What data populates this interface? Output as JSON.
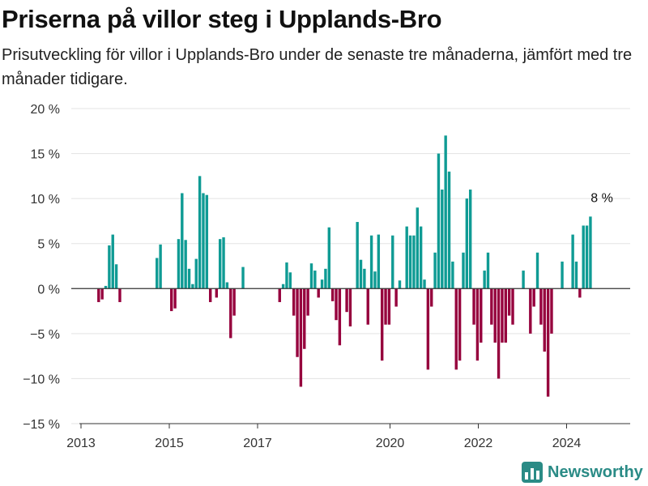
{
  "header": {
    "title": "Priserna på villor steg i Upplands-Bro",
    "subtitle": "Prisutveckling för villor i Upplands-Bro under de senaste tre månaderna, jämfört med tre månader tidigare."
  },
  "brand": {
    "name": "Newsworthy",
    "icon": "bar-chart-logo-icon",
    "color": "#2a8b86"
  },
  "chart_data": {
    "type": "bar",
    "title": "Priserna på villor steg i Upplands-Bro",
    "subtitle": "Prisutveckling för villor i Upplands-Bro under de senaste tre månaderna, jämfört med tre månader tidigare.",
    "xlabel": "",
    "ylabel": "",
    "ylim": [
      -15,
      20
    ],
    "y_ticks": [
      20,
      15,
      10,
      5,
      0,
      -5,
      -10,
      -15
    ],
    "y_tick_labels": [
      "20 %",
      "15 %",
      "10 %",
      "5 %",
      "0 %",
      "−5 %",
      "−10 %",
      "−15 %"
    ],
    "x_ticks": [
      2013,
      2015,
      2017,
      2020,
      2022,
      2024
    ],
    "xlim": [
      2013.0,
      2025.5
    ],
    "grid": true,
    "colors": {
      "positive": "#0f9b94",
      "negative": "#96003d",
      "zero_line": "#333333",
      "grid": "#e3e3e3"
    },
    "annotation": {
      "text": "8 %",
      "x": 2024.8,
      "y": 8
    },
    "series": [
      {
        "values": [
          {
            "x": 2013.4,
            "y": -1.5
          },
          {
            "x": 2013.48,
            "y": -1.2
          },
          {
            "x": 2013.56,
            "y": 0.3
          },
          {
            "x": 2013.64,
            "y": 4.8
          },
          {
            "x": 2013.72,
            "y": 6.0
          },
          {
            "x": 2013.8,
            "y": 2.7
          },
          {
            "x": 2013.88,
            "y": -1.5
          },
          {
            "x": 2014.72,
            "y": 3.4
          },
          {
            "x": 2014.8,
            "y": 4.9
          },
          {
            "x": 2015.05,
            "y": -2.5
          },
          {
            "x": 2015.13,
            "y": -2.2
          },
          {
            "x": 2015.21,
            "y": 5.5
          },
          {
            "x": 2015.29,
            "y": 10.6
          },
          {
            "x": 2015.37,
            "y": 5.4
          },
          {
            "x": 2015.45,
            "y": 2.2
          },
          {
            "x": 2015.53,
            "y": 0.5
          },
          {
            "x": 2015.61,
            "y": 3.3
          },
          {
            "x": 2015.69,
            "y": 12.5
          },
          {
            "x": 2015.77,
            "y": 10.6
          },
          {
            "x": 2015.85,
            "y": 10.4
          },
          {
            "x": 2015.93,
            "y": -1.5
          },
          {
            "x": 2016.07,
            "y": -1.0
          },
          {
            "x": 2016.15,
            "y": 5.5
          },
          {
            "x": 2016.23,
            "y": 5.7
          },
          {
            "x": 2016.31,
            "y": 0.7
          },
          {
            "x": 2016.39,
            "y": -5.5
          },
          {
            "x": 2016.47,
            "y": -3.0
          },
          {
            "x": 2016.67,
            "y": 2.4
          },
          {
            "x": 2017.5,
            "y": -1.5
          },
          {
            "x": 2017.58,
            "y": 0.5
          },
          {
            "x": 2017.66,
            "y": 2.9
          },
          {
            "x": 2017.74,
            "y": 1.8
          },
          {
            "x": 2017.82,
            "y": -3.0
          },
          {
            "x": 2017.9,
            "y": -7.6
          },
          {
            "x": 2017.98,
            "y": -10.9
          },
          {
            "x": 2018.06,
            "y": -6.7
          },
          {
            "x": 2018.14,
            "y": -3.0
          },
          {
            "x": 2018.22,
            "y": 2.8
          },
          {
            "x": 2018.3,
            "y": 2.0
          },
          {
            "x": 2018.38,
            "y": -1.0
          },
          {
            "x": 2018.46,
            "y": 1.0
          },
          {
            "x": 2018.54,
            "y": 2.2
          },
          {
            "x": 2018.62,
            "y": 6.8
          },
          {
            "x": 2018.7,
            "y": -1.4
          },
          {
            "x": 2018.78,
            "y": -3.5
          },
          {
            "x": 2018.86,
            "y": -6.3
          },
          {
            "x": 2019.02,
            "y": -2.6
          },
          {
            "x": 2019.1,
            "y": -4.2
          },
          {
            "x": 2019.26,
            "y": 7.4
          },
          {
            "x": 2019.34,
            "y": 3.2
          },
          {
            "x": 2019.42,
            "y": 2.2
          },
          {
            "x": 2019.5,
            "y": -4.0
          },
          {
            "x": 2019.58,
            "y": 5.9
          },
          {
            "x": 2019.66,
            "y": 1.9
          },
          {
            "x": 2019.74,
            "y": 6.0
          },
          {
            "x": 2019.82,
            "y": -8.0
          },
          {
            "x": 2019.9,
            "y": -4.0
          },
          {
            "x": 2019.98,
            "y": -4.0
          },
          {
            "x": 2020.06,
            "y": 5.9
          },
          {
            "x": 2020.14,
            "y": -2.0
          },
          {
            "x": 2020.22,
            "y": 0.9
          },
          {
            "x": 2020.38,
            "y": 6.9
          },
          {
            "x": 2020.46,
            "y": 5.9
          },
          {
            "x": 2020.54,
            "y": 5.9
          },
          {
            "x": 2020.62,
            "y": 9.0
          },
          {
            "x": 2020.7,
            "y": 6.9
          },
          {
            "x": 2020.78,
            "y": 1.0
          },
          {
            "x": 2020.86,
            "y": -9.0
          },
          {
            "x": 2020.94,
            "y": -2.0
          },
          {
            "x": 2021.02,
            "y": 4.0
          },
          {
            "x": 2021.1,
            "y": 15.0
          },
          {
            "x": 2021.18,
            "y": 11.0
          },
          {
            "x": 2021.26,
            "y": 17.0
          },
          {
            "x": 2021.34,
            "y": 13.0
          },
          {
            "x": 2021.42,
            "y": 3.0
          },
          {
            "x": 2021.5,
            "y": -9.0
          },
          {
            "x": 2021.58,
            "y": -8.0
          },
          {
            "x": 2021.66,
            "y": 4.0
          },
          {
            "x": 2021.74,
            "y": 10.0
          },
          {
            "x": 2021.82,
            "y": 11.0
          },
          {
            "x": 2021.9,
            "y": -4.0
          },
          {
            "x": 2021.98,
            "y": -8.0
          },
          {
            "x": 2022.06,
            "y": -6.0
          },
          {
            "x": 2022.14,
            "y": 2.0
          },
          {
            "x": 2022.22,
            "y": 4.0
          },
          {
            "x": 2022.3,
            "y": -4.0
          },
          {
            "x": 2022.38,
            "y": -6.0
          },
          {
            "x": 2022.46,
            "y": -10.0
          },
          {
            "x": 2022.54,
            "y": -6.0
          },
          {
            "x": 2022.62,
            "y": -6.0
          },
          {
            "x": 2022.7,
            "y": -3.0
          },
          {
            "x": 2022.78,
            "y": -4.0
          },
          {
            "x": 2023.02,
            "y": 2.0
          },
          {
            "x": 2023.18,
            "y": -5.0
          },
          {
            "x": 2023.26,
            "y": -2.0
          },
          {
            "x": 2023.34,
            "y": 4.0
          },
          {
            "x": 2023.42,
            "y": -4.0
          },
          {
            "x": 2023.5,
            "y": -7.0
          },
          {
            "x": 2023.58,
            "y": -12.0
          },
          {
            "x": 2023.66,
            "y": -5.0
          },
          {
            "x": 2023.9,
            "y": 3.0
          },
          {
            "x": 2024.14,
            "y": 6.0
          },
          {
            "x": 2024.22,
            "y": 3.0
          },
          {
            "x": 2024.3,
            "y": -1.0
          },
          {
            "x": 2024.38,
            "y": 7.0
          },
          {
            "x": 2024.46,
            "y": 7.0
          },
          {
            "x": 2024.54,
            "y": 8.0
          }
        ]
      }
    ]
  }
}
